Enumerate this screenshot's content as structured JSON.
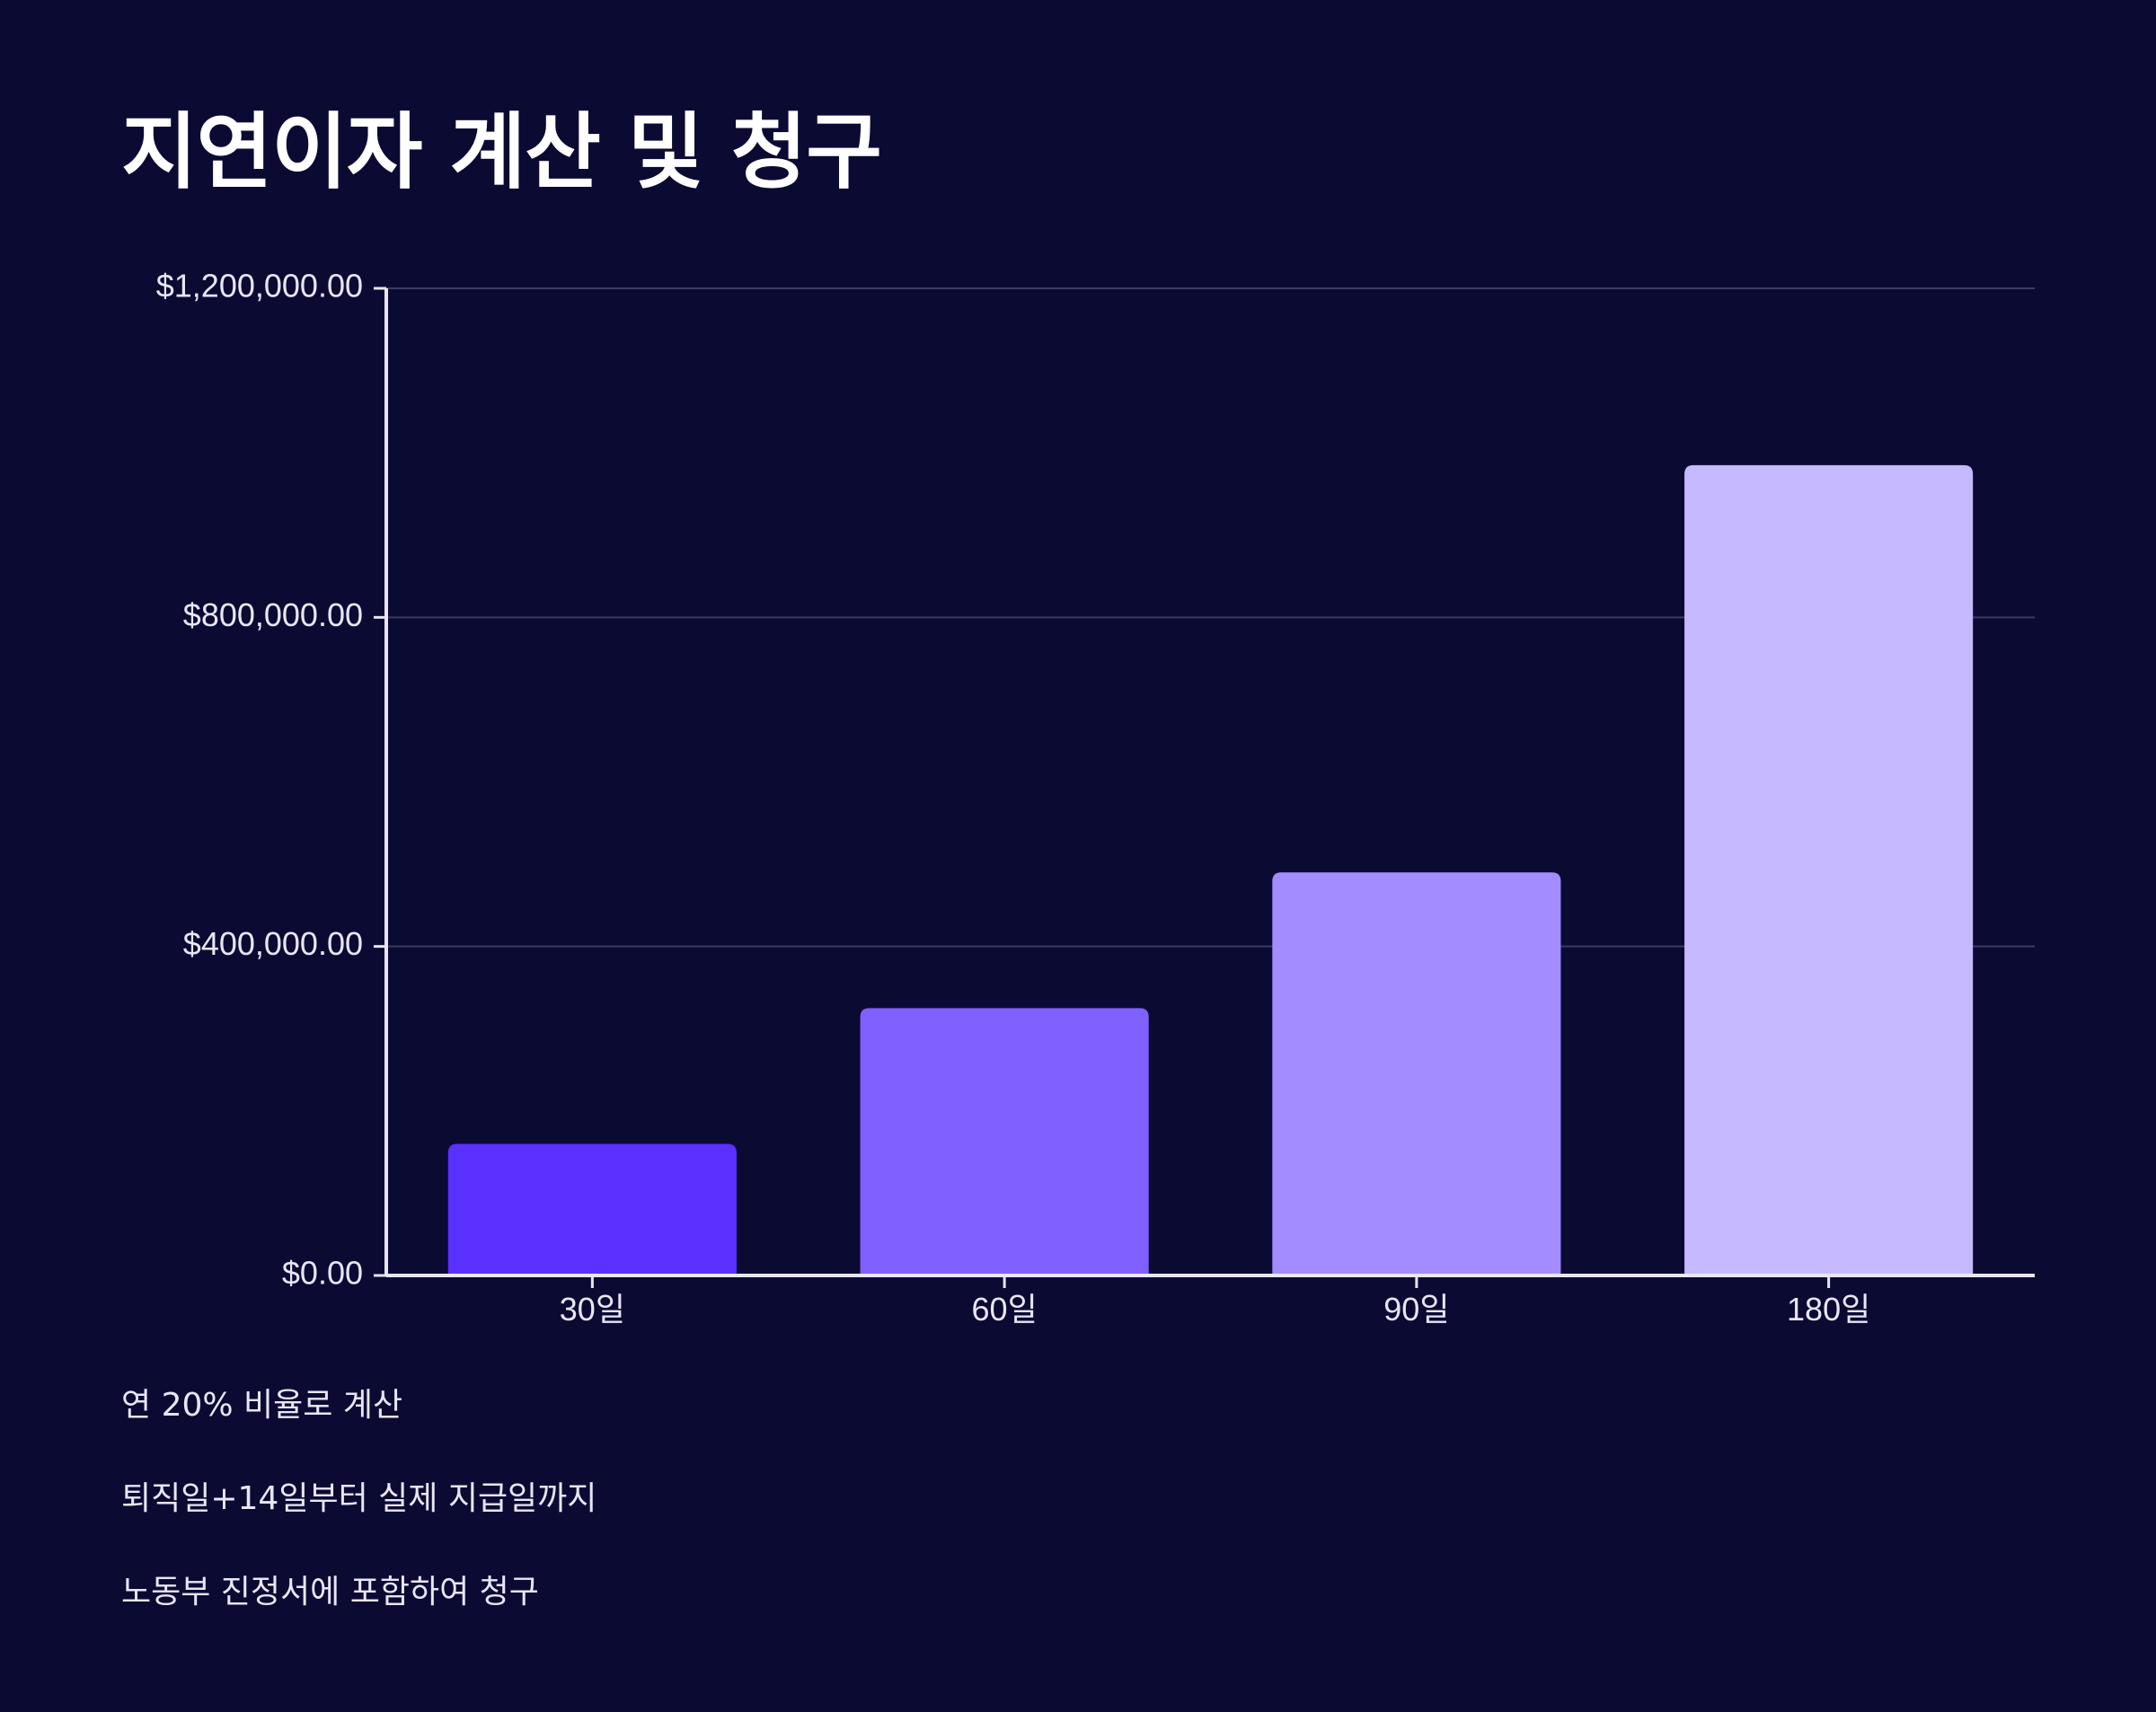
{
  "title": "지연이자 계산 및 청구",
  "chart_data": {
    "type": "bar",
    "categories": [
      "30일",
      "60일",
      "90일",
      "180일"
    ],
    "values": [
      160000,
      325000,
      490000,
      985000
    ],
    "colors": [
      "#5a31ff",
      "#8060ff",
      "#a38cff",
      "#c6b9ff"
    ],
    "yticks": [
      0,
      400000,
      800000,
      1200000
    ],
    "ytick_labels": [
      "$0.00",
      "$400,000.00",
      "$800,000.00",
      "$1,200,000.00"
    ],
    "ylim": [
      0,
      1200000
    ],
    "grid": true,
    "xlabel": "",
    "ylabel": ""
  },
  "notes": [
    "연 20% 비율로 계산",
    "퇴직일+14일부터 실제 지급일까지",
    "노동부 진정서에 포함하여 청구"
  ]
}
